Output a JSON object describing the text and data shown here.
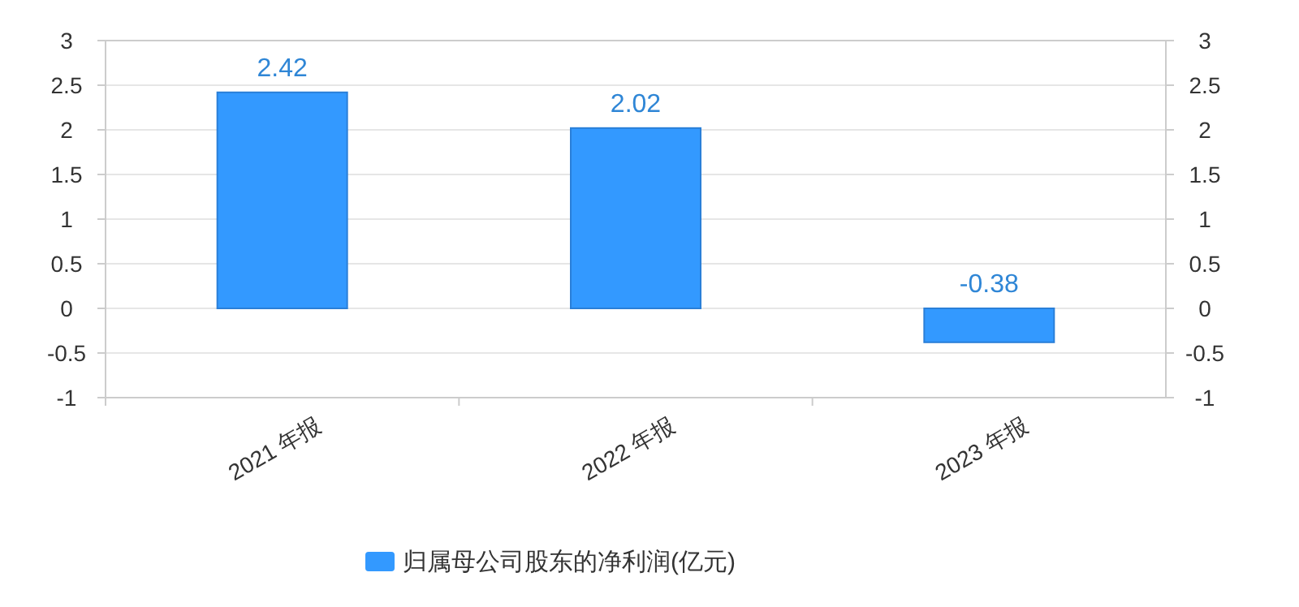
{
  "chart_data": {
    "type": "bar",
    "categories": [
      "2021 年报",
      "2022 年报",
      "2023 年报"
    ],
    "series": [
      {
        "name": "归属母公司股东的净利润(亿元)",
        "color": "#3399ff",
        "values": [
          2.42,
          2.02,
          -0.38
        ]
      }
    ],
    "data_labels": true,
    "ylim": [
      -1,
      3
    ],
    "yticks": [
      -1,
      -0.5,
      0,
      0.5,
      1,
      1.5,
      2,
      2.5,
      3
    ],
    "y2lim": [
      -1,
      3
    ],
    "y2ticks": [
      -1,
      -0.5,
      0,
      0.5,
      1,
      1.5,
      2,
      2.5,
      3
    ],
    "grid": "y",
    "legend": "bottom"
  }
}
